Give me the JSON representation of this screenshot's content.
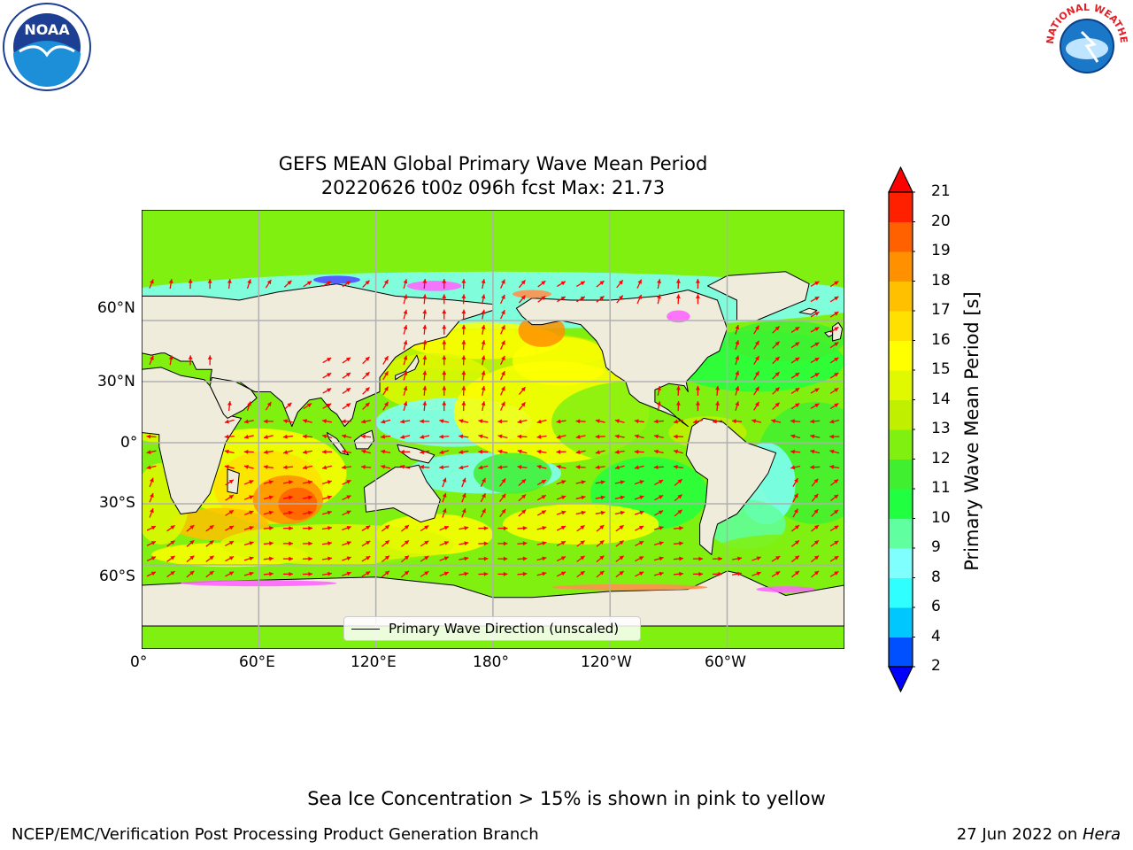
{
  "title": {
    "line1": "GEFS MEAN Global Primary Wave Mean Period",
    "line2": "20220626 t00z 096h fcst   Max: 21.73"
  },
  "map": {
    "lon_labels": [
      "0°",
      "60°E",
      "120°E",
      "180°",
      "120°W",
      "60°W"
    ],
    "lat_labels": [
      "60°N",
      "30°N",
      "0°",
      "30°S",
      "60°S"
    ],
    "legend_label": "Primary Wave Direction (unscaled)",
    "arrow_color": "#ff0000",
    "land_color": "#efecdc"
  },
  "colorbar": {
    "label": "Primary Wave Mean Period [s]",
    "ticks": [
      "2",
      "4",
      "6",
      "8",
      "9",
      "10",
      "11",
      "12",
      "13",
      "14",
      "15",
      "16",
      "17",
      "18",
      "19",
      "20",
      "21"
    ],
    "colors": [
      "#0050ff",
      "#00c8ff",
      "#30ffff",
      "#80ffff",
      "#60ffa0",
      "#20ff40",
      "#40f030",
      "#80f010",
      "#c0f000",
      "#e0f800",
      "#ffff00",
      "#ffe000",
      "#ffc000",
      "#ff9000",
      "#ff6000",
      "#ff2000"
    ],
    "under_color": "#0000ff",
    "over_color": "#ff0000"
  },
  "caption": "Sea Ice Concentration > 15% is shown in pink to yellow",
  "footer": {
    "left": "NCEP/EMC/Verification Post Processing Product Generation Branch",
    "right_date": "27 Jun 2022 on ",
    "right_host": "Hera"
  },
  "logos": {
    "noaa_text": "NOAA",
    "nws_text": "NATIONAL WEATHER SERVICE"
  }
}
